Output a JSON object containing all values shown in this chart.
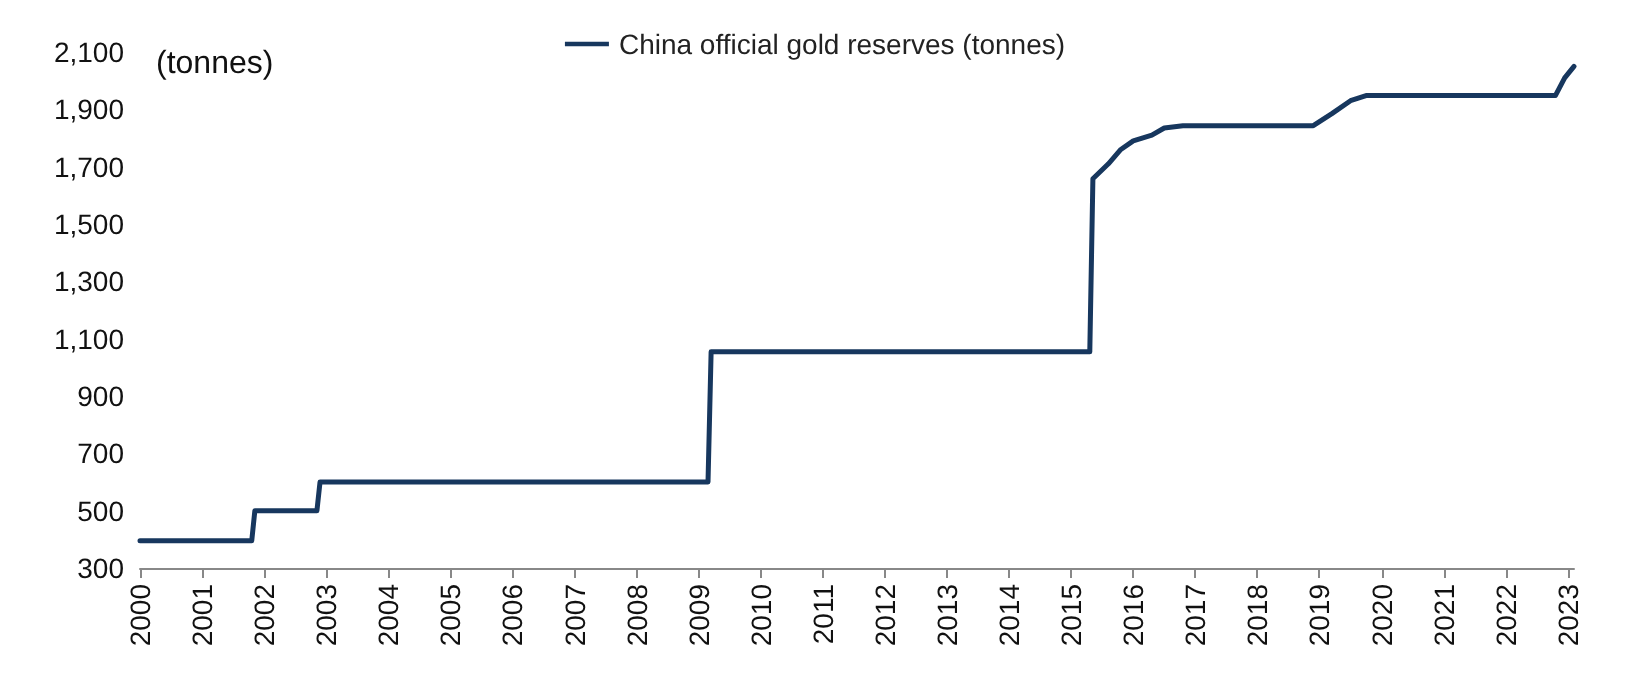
{
  "chart_data": {
    "type": "line",
    "ylabel": "(tonnes)",
    "legend": "top",
    "grid": false,
    "marker": "none",
    "line_style": "solid",
    "xlim": [
      2000,
      2023.1
    ],
    "xticks": [
      2000,
      2001,
      2002,
      2003,
      2004,
      2005,
      2006,
      2007,
      2008,
      2009,
      2010,
      2011,
      2012,
      2013,
      2014,
      2015,
      2016,
      2017,
      2018,
      2019,
      2020,
      2021,
      2022,
      2023
    ],
    "ylim": [
      300,
      2100
    ],
    "yticks": [
      300,
      500,
      700,
      900,
      {
        "value": 1100,
        "label": "1,100"
      },
      {
        "value": 1300,
        "label": "1,300"
      },
      {
        "value": 1500,
        "label": "1,500"
      },
      {
        "value": 1700,
        "label": "1,700"
      },
      {
        "value": 1900,
        "label": "1,900"
      },
      {
        "value": 2100,
        "label": "2,100"
      }
    ],
    "series": [
      {
        "name": "China official gold reserves (tonnes)",
        "color": "#17375e",
        "x": [
          2000,
          2001.8,
          2001.85,
          2002.85,
          2002.9,
          2009.15,
          2009.2,
          2015.3,
          2015.35,
          2015.6,
          2015.8,
          2016,
          2016.3,
          2016.5,
          2016.8,
          2018.9,
          2019.2,
          2019.5,
          2019.75,
          2022.8,
          2022.95,
          2023.1
        ],
        "values": [
          395,
          395,
          500,
          500,
          600,
          600,
          1054,
          1054,
          1658,
          1710,
          1760,
          1790,
          1810,
          1835,
          1843,
          1843,
          1885,
          1930,
          1948,
          1948,
          2010,
          2050
        ]
      }
    ]
  }
}
